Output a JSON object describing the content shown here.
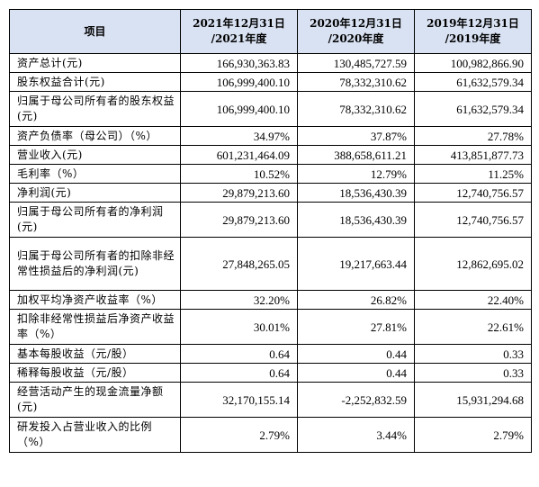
{
  "header": {
    "item": "项目",
    "col1_line1": "2021年12月31日",
    "col1_line2": "/2021年度",
    "col2_line1": "2020年12月31日",
    "col2_line2": "/2020年度",
    "col3_line1": "2019年12月31日",
    "col3_line2": "/2019年度"
  },
  "rows": [
    {
      "label": "资产总计(元)",
      "v2021": "166,930,363.83",
      "v2020": "130,485,727.59",
      "v2019": "100,982,866.90"
    },
    {
      "label": "股东权益合计(元)",
      "v2021": "106,999,400.10",
      "v2020": "78,332,310.62",
      "v2019": "61,632,579.34"
    },
    {
      "label": "归属于母公司所有者的股东权益(元)",
      "v2021": "106,999,400.10",
      "v2020": "78,332,310.62",
      "v2019": "61,632,579.34"
    },
    {
      "label": "资产负债率（母公司）（%）",
      "v2021": "34.97%",
      "v2020": "37.87%",
      "v2019": "27.78%"
    },
    {
      "label": "营业收入(元)",
      "v2021": "601,231,464.09",
      "v2020": "388,658,611.21",
      "v2019": "413,851,877.73"
    },
    {
      "label": "毛利率（%）",
      "v2021": "10.52%",
      "v2020": "12.79%",
      "v2019": "11.25%"
    },
    {
      "label": "净利润(元)",
      "v2021": "29,879,213.60",
      "v2020": "18,536,430.39",
      "v2019": "12,740,756.57"
    },
    {
      "label": "归属于母公司所有者的净利润(元)",
      "v2021": "29,879,213.60",
      "v2020": "18,536,430.39",
      "v2019": "12,740,756.57"
    },
    {
      "label": "归属于母公司所有者的扣除非经常性损益后的净利润(元)",
      "v2021": "27,848,265.05",
      "v2020": "19,217,663.44",
      "v2019": "12,862,695.02"
    },
    {
      "label": "加权平均净资产收益率（%）",
      "v2021": "32.20%",
      "v2020": "26.82%",
      "v2019": "22.40%"
    },
    {
      "label": "扣除非经常性损益后净资产收益率（%）",
      "v2021": "30.01%",
      "v2020": "27.81%",
      "v2019": "22.61%"
    },
    {
      "label": "基本每股收益（元/股）",
      "v2021": "0.64",
      "v2020": "0.44",
      "v2019": "0.33"
    },
    {
      "label": "稀释每股收益（元/股）",
      "v2021": "0.64",
      "v2020": "0.44",
      "v2019": "0.33"
    },
    {
      "label": "经营活动产生的现金流量净额(元)",
      "v2021": "32,170,155.14",
      "v2020": "-2,252,832.59",
      "v2019": "15,931,294.68"
    },
    {
      "label": "研发投入占营业收入的比例（%）",
      "v2021": "2.79%",
      "v2020": "3.44%",
      "v2019": "2.79%"
    }
  ]
}
